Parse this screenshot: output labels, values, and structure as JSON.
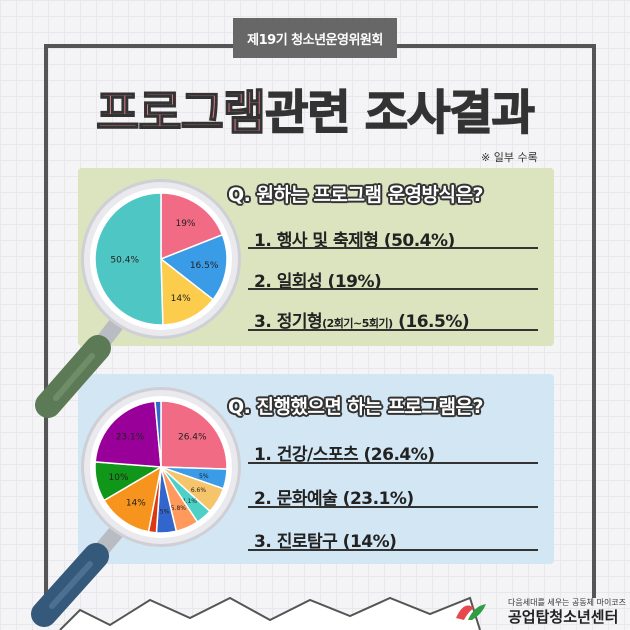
{
  "badge": "제19기 청소년운영위원회",
  "title": {
    "part1": "프로그램",
    "part2": "관련 조사결과"
  },
  "note": "※ 일부 수록",
  "colors": {
    "pink": "#f26b85",
    "blue": "#3a9be6",
    "yellow": "#fccd4d",
    "teal": "#4ec7c4",
    "purple": "#990099",
    "orange": "#f7941d",
    "green": "#109618",
    "red": "#dc3912",
    "navy": "#3366cc",
    "lightorange": "#ff9a5c",
    "lightteal": "#4dd0c6",
    "lightyellow": "#f6c46a"
  },
  "q1": {
    "question": "Q. 원하는 프로그램 운영방식은?",
    "answers": [
      {
        "text": "1. 행사 및 축제형 (50.4%)"
      },
      {
        "text": "2. 일회성 (19%)"
      },
      {
        "main": "3. 정기형",
        "sub": "(2회기~5회기)",
        "tail": " (16.5%)"
      }
    ]
  },
  "q2": {
    "question": "Q. 진행했으면 하는 프로그램은?",
    "answers": [
      {
        "text": "1. 건강/스포츠 (26.4%)"
      },
      {
        "text": "2. 문화예술 (23.1%)"
      },
      {
        "text": "3. 진로탐구 (14%)"
      }
    ]
  },
  "chart_data": [
    {
      "type": "pie",
      "slices": [
        {
          "label": "19%",
          "value": 19,
          "color": "#f26b85"
        },
        {
          "label": "16.5%",
          "value": 16.5,
          "color": "#3a9be6"
        },
        {
          "label": "14%",
          "value": 14,
          "color": "#fccd4d"
        },
        {
          "label": "50.4%",
          "value": 50.4,
          "color": "#4ec7c4"
        }
      ]
    },
    {
      "type": "pie",
      "slices": [
        {
          "label": "26.4%",
          "value": 26.4,
          "color": "#f26b85"
        },
        {
          "label": "5%",
          "value": 5,
          "color": "#3a9be6"
        },
        {
          "label": "6.6%",
          "value": 6.6,
          "color": "#f6c46a"
        },
        {
          "label": "4.1%",
          "value": 4.1,
          "color": "#4dd0c6"
        },
        {
          "label": "5.8%",
          "value": 5.8,
          "color": "#ff9a5c"
        },
        {
          "label": "5%",
          "value": 5,
          "color": "#3366cc"
        },
        {
          "label": "",
          "value": 2,
          "color": "#dc3912"
        },
        {
          "label": "14%",
          "value": 14,
          "color": "#f7941d"
        },
        {
          "label": "10%",
          "value": 10,
          "color": "#109618"
        },
        {
          "label": "23.1%",
          "value": 23.1,
          "color": "#990099"
        },
        {
          "label": "",
          "value": 1.5,
          "color": "#3366cc"
        }
      ]
    }
  ],
  "logo": {
    "tagline": "다음세대를 세우는 공동체 마이코즈",
    "name": "공업탑청소년센터"
  }
}
